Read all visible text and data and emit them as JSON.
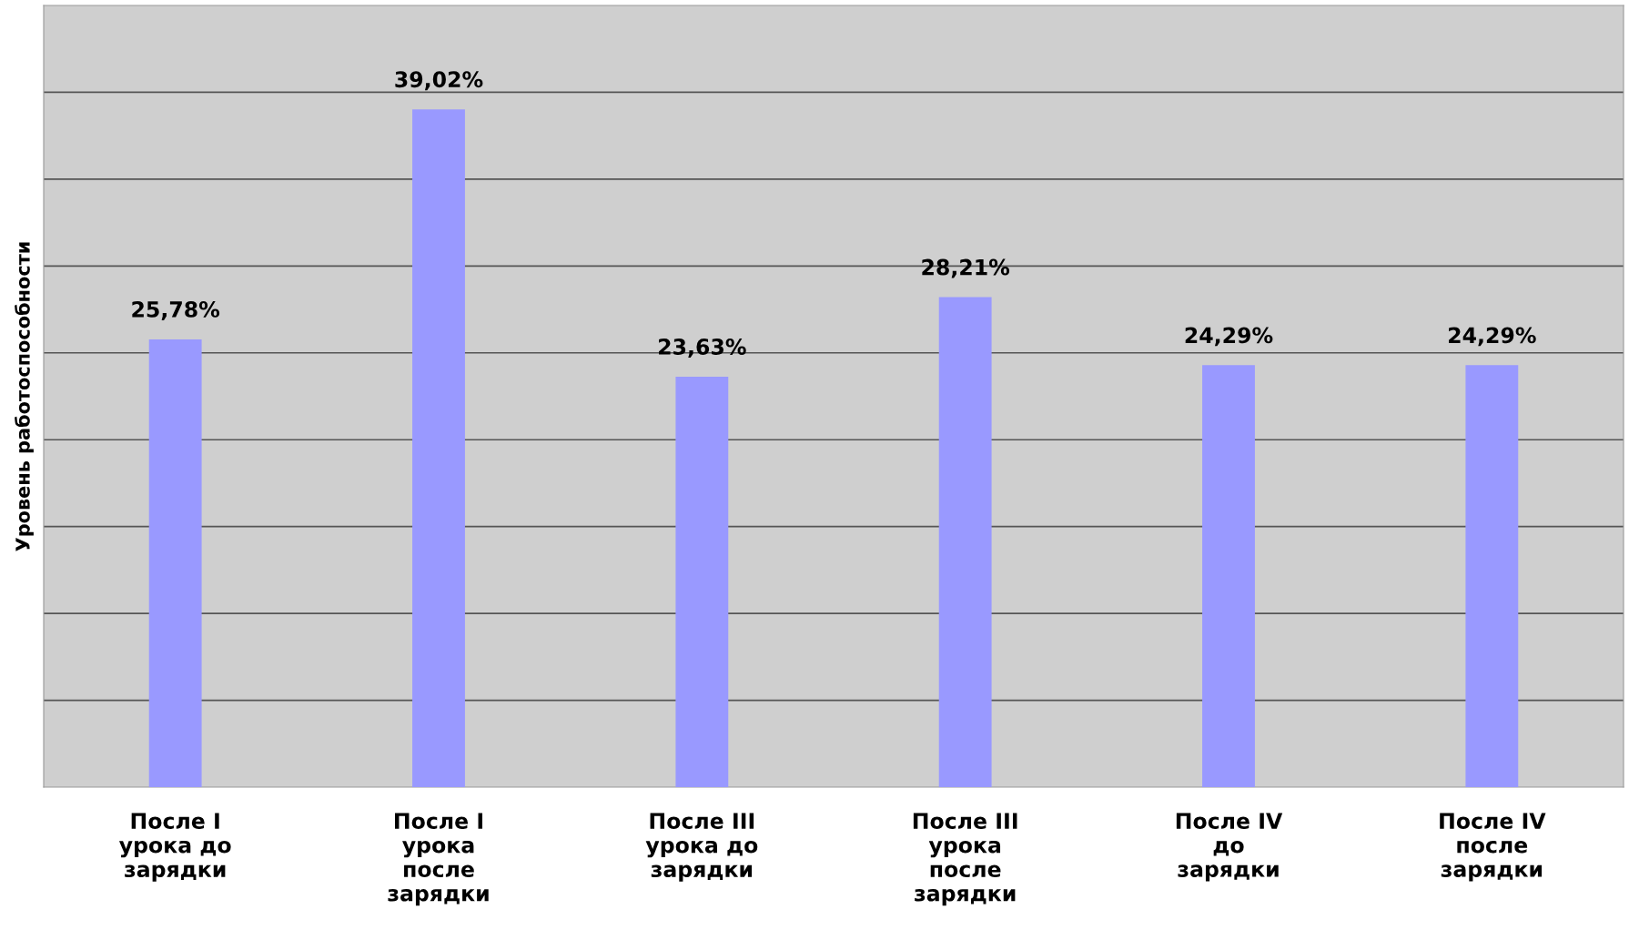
{
  "chart_data": {
    "type": "bar",
    "ylabel": "Уровень работоспособности",
    "categories": [
      "После I\nурока до\nзарядки",
      "После I\nурока\nпосле\nзарядки",
      "После III\nурока до\nзарядки",
      "После III\nурока\nпосле\nзарядки",
      "После IV\nдо\nзарядки",
      "После IV\nпосле\nзарядки"
    ],
    "values": [
      25.78,
      39.02,
      23.63,
      28.21,
      24.29,
      24.29
    ],
    "value_labels": [
      "25,78%",
      "39,02%",
      "23,63%",
      "28,21%",
      "24,29%",
      "24,29%"
    ],
    "color": "#9999ff",
    "ylim": [
      0,
      45
    ],
    "yticks": [
      {
        "value": 5,
        "label": null
      },
      {
        "value": 10,
        "label": null
      },
      {
        "value": 15,
        "label": null
      },
      {
        "value": 20,
        "label": null
      },
      {
        "value": 25,
        "label": null
      },
      {
        "value": 30,
        "label": null
      },
      {
        "value": 35,
        "label": null
      },
      {
        "value": 40,
        "label": null
      }
    ],
    "grid": "y",
    "tick_labels": "x",
    "legend": false
  }
}
